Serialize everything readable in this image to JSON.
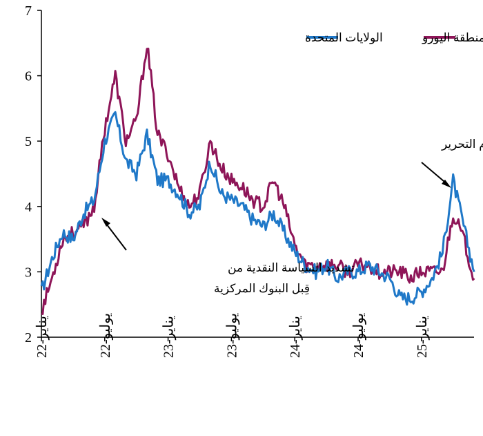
{
  "chart_data": {
    "type": "line",
    "title": "",
    "xlabel": "",
    "ylabel": "",
    "ylim": [
      2,
      7
    ],
    "yticks": [
      "2",
      "3",
      "4",
      "5",
      "6",
      "7"
    ],
    "xticks": [
      "يناير-22",
      "يوليو-22",
      "يناير-23",
      "يوليو-23",
      "يناير-24",
      "يوليو-24",
      "يناير-25"
    ],
    "x_months": [
      0,
      1,
      2,
      3,
      4,
      5,
      6,
      7,
      8,
      9,
      10,
      11,
      12,
      13,
      14,
      15,
      16,
      17,
      18,
      19,
      20,
      21,
      22,
      23,
      24,
      25,
      26,
      27,
      28,
      29,
      30,
      31,
      32,
      33,
      34,
      35,
      36,
      37,
      38,
      39,
      40,
      41
    ],
    "series": [
      {
        "name": "الولايات المتحدة",
        "color": "#1f78c8",
        "values": [
          2.7,
          3.2,
          3.6,
          3.5,
          3.9,
          4.1,
          5.0,
          5.4,
          4.7,
          4.5,
          5.1,
          4.4,
          4.4,
          4.2,
          3.9,
          4.0,
          4.7,
          4.2,
          4.1,
          4.0,
          3.8,
          3.7,
          3.9,
          3.6,
          3.3,
          3.1,
          3.0,
          3.1,
          2.9,
          3.0,
          3.0,
          3.1,
          3.0,
          2.9,
          2.6,
          2.6,
          2.7,
          2.9,
          3.3,
          4.4,
          3.7,
          3.0
        ]
      },
      {
        "name": "منطقة اليورو",
        "color": "#8e1558",
        "values": [
          2.4,
          2.9,
          3.5,
          3.6,
          3.7,
          4.0,
          5.2,
          6.0,
          5.0,
          5.3,
          6.5,
          5.1,
          4.8,
          4.3,
          4.0,
          4.2,
          5.0,
          4.6,
          4.4,
          4.3,
          4.1,
          4.0,
          4.4,
          4.0,
          3.4,
          3.1,
          3.1,
          3.1,
          3.1,
          3.0,
          3.1,
          3.1,
          3.0,
          3.0,
          3.0,
          2.9,
          3.0,
          3.0,
          3.0,
          3.9,
          3.5,
          2.9
        ]
      }
    ],
    "legend": {
      "position": "top-right",
      "items": [
        {
          "label": "منطقة اليورو",
          "color": "#8e1558"
        },
        {
          "label": "الولايات المتحدة",
          "color": "#1f78c8"
        }
      ]
    },
    "annotations": [
      {
        "lines": [
          "يوم التحرير"
        ],
        "x_month": 39.5,
        "y": 4.3
      },
      {
        "lines": [
          "تشديد السياسة النقدية من",
          "قِبل البنوك المركزية"
        ],
        "x_month": 6,
        "y": 3.85
      }
    ]
  }
}
